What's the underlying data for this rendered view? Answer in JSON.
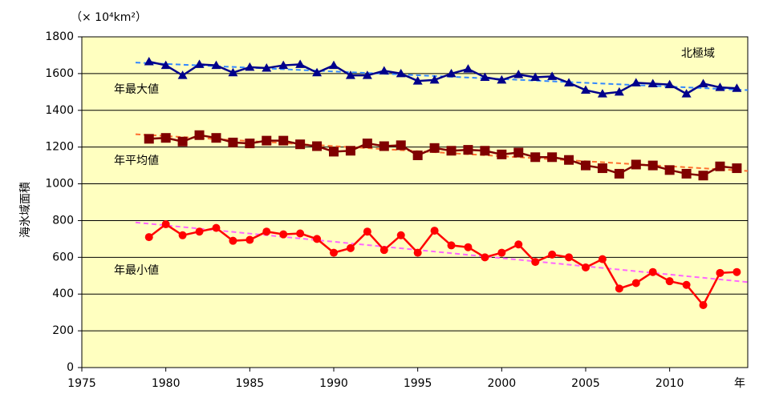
{
  "chart_data": {
    "type": "line",
    "unit_label": "（× 10⁴km²）",
    "y_label": "海氷域面積",
    "x_label": "年",
    "region_label": "北極域",
    "xlim": [
      1975,
      2014.65
    ],
    "xticks": [
      1975,
      1980,
      1985,
      1990,
      1995,
      2000,
      2005,
      2010
    ],
    "ylim": [
      0,
      1800
    ],
    "yticks": [
      0,
      200,
      400,
      600,
      800,
      1000,
      1200,
      1400,
      1600,
      1800
    ],
    "grid": true,
    "background": "#ffffc0",
    "x": [
      1979,
      1980,
      1981,
      1982,
      1983,
      1984,
      1985,
      1986,
      1987,
      1988,
      1989,
      1990,
      1991,
      1992,
      1993,
      1994,
      1995,
      1996,
      1997,
      1998,
      1999,
      2000,
      2001,
      2002,
      2003,
      2004,
      2005,
      2006,
      2007,
      2008,
      2009,
      2010,
      2011,
      2012,
      2013,
      2014
    ],
    "series": [
      {
        "name": "年最大値",
        "color": "#00008b",
        "marker": "triangle",
        "values": [
          1665,
          1645,
          1590,
          1650,
          1645,
          1605,
          1635,
          1630,
          1645,
          1650,
          1605,
          1645,
          1590,
          1590,
          1615,
          1600,
          1560,
          1565,
          1600,
          1625,
          1580,
          1565,
          1595,
          1580,
          1585,
          1550,
          1510,
          1490,
          1500,
          1550,
          1545,
          1540,
          1490,
          1545,
          1525,
          1520
        ]
      },
      {
        "name": "年平均値",
        "color": "#800000",
        "marker": "square",
        "values": [
          1245,
          1250,
          1230,
          1265,
          1250,
          1225,
          1220,
          1235,
          1235,
          1215,
          1205,
          1175,
          1180,
          1220,
          1205,
          1210,
          1155,
          1195,
          1180,
          1185,
          1180,
          1160,
          1170,
          1145,
          1145,
          1130,
          1100,
          1085,
          1055,
          1105,
          1100,
          1075,
          1055,
          1045,
          1095,
          1085
        ]
      },
      {
        "name": "年最小値",
        "color": "#ff0000",
        "marker": "circle",
        "values": [
          710,
          780,
          720,
          740,
          760,
          690,
          695,
          740,
          725,
          730,
          700,
          625,
          650,
          740,
          640,
          720,
          625,
          745,
          665,
          655,
          600,
          625,
          670,
          575,
          615,
          600,
          545,
          590,
          430,
          460,
          520,
          470,
          450,
          340,
          515,
          520
        ]
      }
    ],
    "series_label_colors": [
      "#1a1a8c",
      "#d04010",
      "#e02000"
    ],
    "trend_lines": [
      {
        "color": "#3388ff",
        "x": [
          1978.2,
          2014.65
        ],
        "values": [
          1660,
          1510
        ]
      },
      {
        "color": "#ff7030",
        "x": [
          1978.2,
          2014.65
        ],
        "values": [
          1270,
          1070
        ]
      },
      {
        "color": "#ff66ff",
        "x": [
          1978.2,
          2014.65
        ],
        "values": [
          790,
          465
        ]
      }
    ]
  }
}
